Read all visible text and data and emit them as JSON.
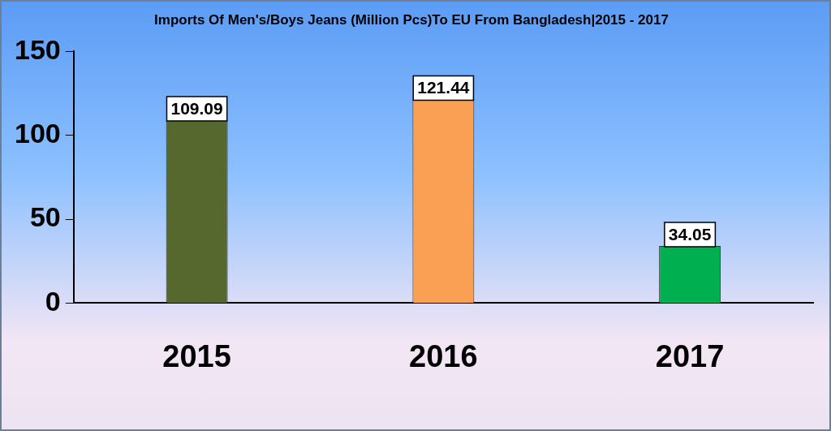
{
  "chart_data": {
    "type": "bar",
    "title": "Imports Of Men's/Boys Jeans (Million Pcs)To EU From Bangladesh|2015 - 2017",
    "categories": [
      "2015",
      "2016",
      "2017"
    ],
    "values": [
      109.09,
      121.44,
      34.05
    ],
    "colors": [
      "#56682e",
      "#f9a054",
      "#00b050"
    ],
    "ylim": [
      0,
      150
    ],
    "yticks": [
      0,
      50,
      100,
      150
    ],
    "grid": false,
    "data_labels": true
  }
}
